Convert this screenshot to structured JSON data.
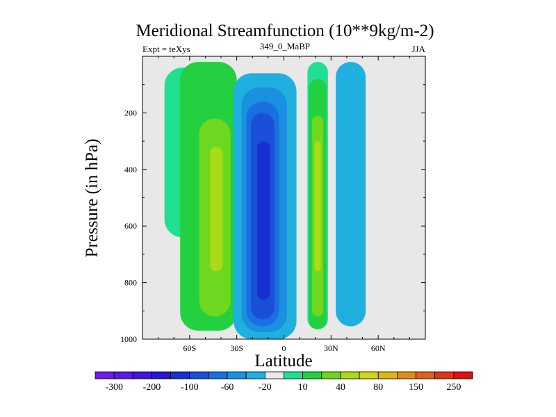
{
  "chart_data": {
    "type": "contour",
    "title": "Meridional Streamfunction (10**9kg/m-2)",
    "left_label": "Expt = teXys",
    "center_label": "349_0_MaBP",
    "right_label": "JJA",
    "xlabel": "Latitude",
    "ylabel": "Pressure (in hPa)",
    "x_range": [
      -90,
      90
    ],
    "y_range": [
      0,
      1000
    ],
    "y_inverted": true,
    "x_ticks": [
      {
        "value": -60,
        "label": "60S"
      },
      {
        "value": -30,
        "label": "30S"
      },
      {
        "value": 0,
        "label": "0"
      },
      {
        "value": 30,
        "label": "30N"
      },
      {
        "value": 60,
        "label": "60N"
      }
    ],
    "y_ticks": [
      {
        "value": 200,
        "label": "200"
      },
      {
        "value": 400,
        "label": "400"
      },
      {
        "value": 600,
        "label": "600"
      },
      {
        "value": 800,
        "label": "800"
      },
      {
        "value": 1000,
        "label": "1000"
      }
    ],
    "colorbar": {
      "colors": [
        "#6a1fe8",
        "#5a1ae0",
        "#4316d8",
        "#2c16d0",
        "#1830d0",
        "#1a50d8",
        "#1a70e0",
        "#1a90e0",
        "#20b0e0",
        "#e8e8e8",
        "#1ee090",
        "#22d040",
        "#6ed820",
        "#a8dc18",
        "#d4d418",
        "#e0b418",
        "#e08c18",
        "#e06018",
        "#e03418",
        "#e01010"
      ],
      "tick_labels": [
        {
          "after": 1,
          "label": "-300"
        },
        {
          "after": 3,
          "label": "-200"
        },
        {
          "after": 5,
          "label": "-100"
        },
        {
          "after": 7,
          "label": "-60"
        },
        {
          "after": 9,
          "label": "-20"
        },
        {
          "after": 11,
          "label": "10"
        },
        {
          "after": 13,
          "label": "40"
        },
        {
          "after": 15,
          "label": "80"
        },
        {
          "after": 17,
          "label": "150"
        },
        {
          "after": 19,
          "label": "250"
        }
      ]
    },
    "missing_color": "#e8e8e8",
    "cells": [
      {
        "name": "sh-outer-cell",
        "lat_range": [
          -78,
          -23
        ],
        "p_top": 20,
        "p_bottom": 970,
        "levels": [
          {
            "color": "#1ee090",
            "lat": [
              -76,
              -50
            ],
            "p": [
              40,
              640
            ]
          },
          {
            "color": "#22d040",
            "lat": [
              -66,
              -30
            ],
            "p": [
              20,
              970
            ]
          },
          {
            "color": "#6ed820",
            "lat": [
              -54,
              -34
            ],
            "p": [
              220,
              920
            ]
          },
          {
            "color": "#a8dc18",
            "lat": [
              -47,
              -39
            ],
            "p": [
              320,
              760
            ]
          }
        ]
      },
      {
        "name": "hadley-cell",
        "lat_range": [
          -32,
          8
        ],
        "p_top": 60,
        "p_bottom": 1000,
        "levels": [
          {
            "color": "#20b0e0",
            "lat": [
              -32,
              8
            ],
            "p": [
              60,
              1000
            ]
          },
          {
            "color": "#1a90e0",
            "lat": [
              -27,
              2
            ],
            "p": [
              110,
              975
            ]
          },
          {
            "color": "#1a70e0",
            "lat": [
              -24,
              -3
            ],
            "p": [
              160,
              955
            ]
          },
          {
            "color": "#1a50d8",
            "lat": [
              -21,
              -6
            ],
            "p": [
              200,
              930
            ]
          },
          {
            "color": "#1830d0",
            "lat": [
              -17,
              -9
            ],
            "p": [
              300,
              860
            ]
          }
        ]
      },
      {
        "name": "nh-cell",
        "lat_range": [
          15,
          28
        ],
        "p_top": 20,
        "p_bottom": 965,
        "levels": [
          {
            "color": "#1ee090",
            "lat": [
              15,
              28
            ],
            "p": [
              20,
              965
            ]
          },
          {
            "color": "#22d040",
            "lat": [
              16,
              27
            ],
            "p": [
              80,
              965
            ]
          },
          {
            "color": "#6ed820",
            "lat": [
              18,
              25
            ],
            "p": [
              210,
              920
            ]
          },
          {
            "color": "#a8dc18",
            "lat": [
              19.5,
              23.5
            ],
            "p": [
              300,
              760
            ]
          }
        ]
      },
      {
        "name": "nh-outer-cell",
        "lat_range": [
          33,
          52
        ],
        "p_top": 20,
        "p_bottom": 955,
        "levels": [
          {
            "color": "#20b0e0",
            "lat": [
              33,
              52
            ],
            "p": [
              20,
              955
            ]
          }
        ]
      }
    ]
  }
}
